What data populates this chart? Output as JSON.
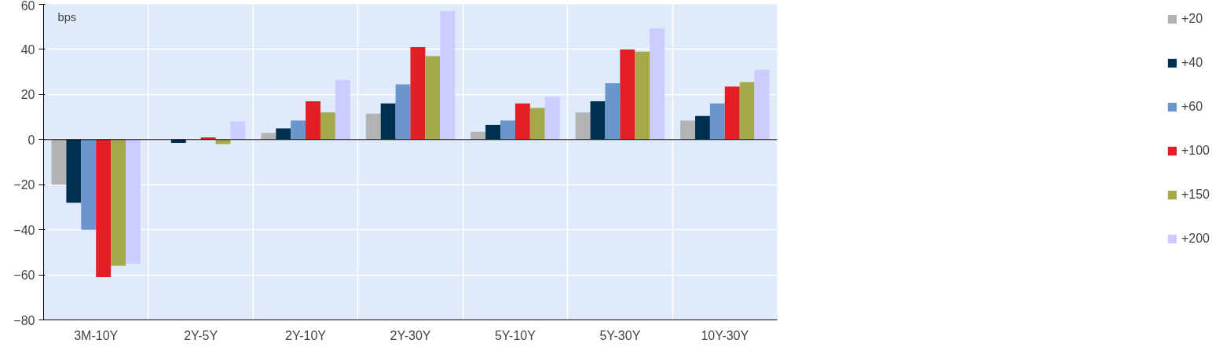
{
  "chart_data": {
    "type": "bar",
    "categories": [
      "3M-10Y",
      "2Y-5Y",
      "2Y-10Y",
      "2Y-30Y",
      "5Y-10Y",
      "5Y-30Y",
      "10Y-30Y"
    ],
    "series": [
      {
        "name": "+20",
        "color": "#b3b3b3",
        "values": [
          -20,
          0,
          3,
          11.5,
          3.5,
          12,
          8.5
        ]
      },
      {
        "name": "+40",
        "color": "#003050",
        "values": [
          -28,
          -1.5,
          5,
          16,
          6.5,
          17,
          10.5
        ]
      },
      {
        "name": "+60",
        "color": "#6b96cc",
        "values": [
          -40,
          0,
          8.5,
          24.5,
          8.5,
          25,
          16
        ]
      },
      {
        "name": "+100",
        "color": "#e31e24",
        "values": [
          -61,
          1,
          17,
          41,
          16,
          40,
          23.5
        ]
      },
      {
        "name": "+150",
        "color": "#a6a94a",
        "values": [
          -56,
          -2,
          12,
          37,
          14,
          39,
          25.5
        ]
      },
      {
        "name": "+200",
        "color": "#ccccff",
        "values": [
          -55,
          8,
          26.5,
          57,
          19,
          49.5,
          31
        ]
      }
    ],
    "ylim": [
      -80,
      60
    ],
    "yticks": [
      -80,
      -60,
      -40,
      -20,
      0,
      20,
      40,
      60
    ],
    "annotations": [
      "bps"
    ],
    "grid": true,
    "legend": "right"
  }
}
